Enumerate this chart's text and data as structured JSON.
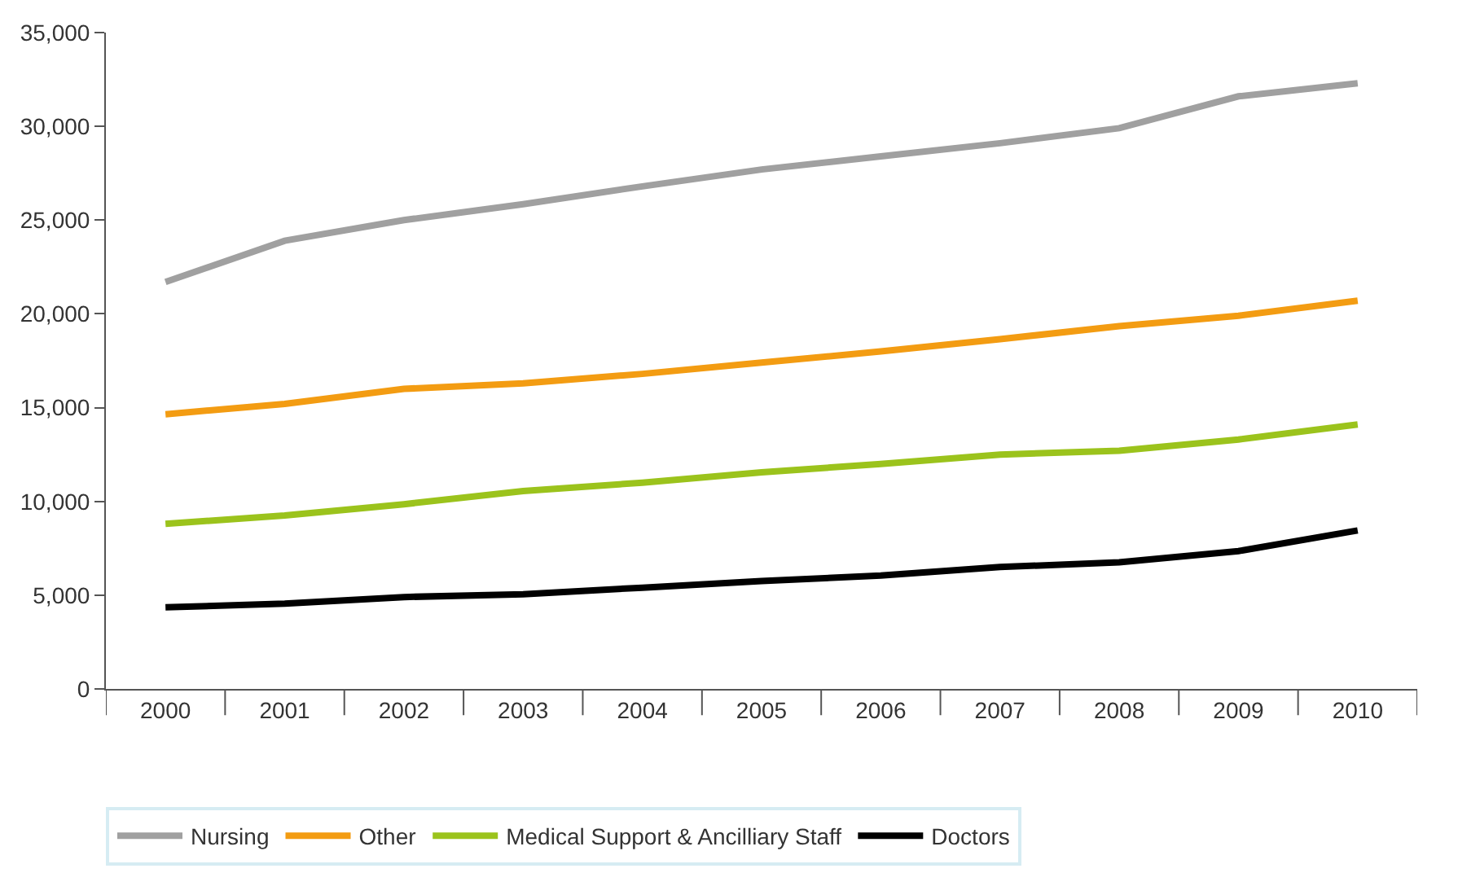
{
  "chart_data": {
    "type": "line",
    "categories": [
      "2000",
      "2001",
      "2002",
      "2003",
      "2004",
      "2005",
      "2006",
      "2007",
      "2008",
      "2009",
      "2010"
    ],
    "series": [
      {
        "name": "Nursing",
        "color": "#a0a0a0",
        "values": [
          21700,
          23900,
          25000,
          25850,
          26800,
          27700,
          28400,
          29100,
          29900,
          31600,
          32300
        ]
      },
      {
        "name": "Other",
        "color": "#f39c12",
        "values": [
          14650,
          15200,
          16000,
          16300,
          16800,
          17400,
          18000,
          18650,
          19350,
          19900,
          20700
        ]
      },
      {
        "name": "Medical Support & Ancilliary Staff",
        "color": "#9bc31c",
        "values": [
          8800,
          9250,
          9850,
          10550,
          11000,
          11550,
          12000,
          12500,
          12700,
          13300,
          14100
        ]
      },
      {
        "name": "Doctors",
        "color": "#000000",
        "values": [
          4350,
          4550,
          4900,
          5050,
          5400,
          5750,
          6050,
          6500,
          6750,
          7350,
          8450
        ]
      }
    ],
    "ylim": [
      0,
      35000
    ],
    "yticks": [
      {
        "value": 0,
        "label": "0"
      },
      {
        "value": 5000,
        "label": "5,000"
      },
      {
        "value": 10000,
        "label": "10,000"
      },
      {
        "value": 15000,
        "label": "15,000"
      },
      {
        "value": 20000,
        "label": "20,000"
      },
      {
        "value": 25000,
        "label": "25,000"
      },
      {
        "value": 30000,
        "label": "30,000"
      },
      {
        "value": 35000,
        "label": "35,000"
      }
    ],
    "grid": false,
    "legend": "bottom",
    "marker": "none",
    "line_style": "solid"
  }
}
